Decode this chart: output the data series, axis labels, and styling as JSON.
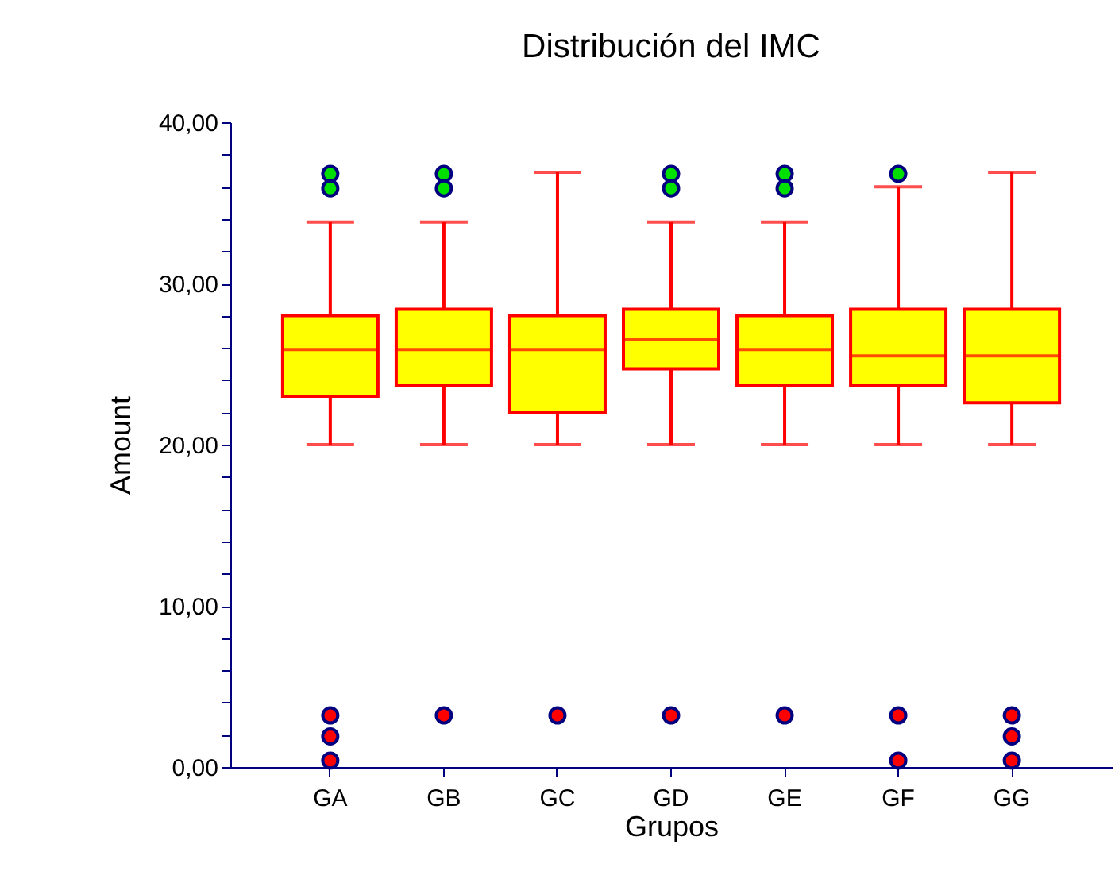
{
  "chart_data": {
    "type": "box",
    "title": "Distribución del IMC",
    "xlabel": "Grupos",
    "ylabel": "Amount",
    "categories": [
      "GA",
      "GB",
      "GC",
      "GD",
      "GE",
      "GF",
      "GG"
    ],
    "ylim": [
      0,
      40
    ],
    "yticks": [
      {
        "value": 0,
        "label": "0,00"
      },
      {
        "value": 2,
        "label": null
      },
      {
        "value": 4,
        "label": null
      },
      {
        "value": 6,
        "label": null
      },
      {
        "value": 8,
        "label": null
      },
      {
        "value": 10,
        "label": "10,00"
      },
      {
        "value": 12,
        "label": null
      },
      {
        "value": 14,
        "label": null
      },
      {
        "value": 16,
        "label": null
      },
      {
        "value": 18,
        "label": null
      },
      {
        "value": 20,
        "label": "20,00"
      },
      {
        "value": 22,
        "label": null
      },
      {
        "value": 24,
        "label": null
      },
      {
        "value": 26,
        "label": null
      },
      {
        "value": 28,
        "label": null
      },
      {
        "value": 30,
        "label": "30,00"
      },
      {
        "value": 32,
        "label": null
      },
      {
        "value": 34,
        "label": null
      },
      {
        "value": 36,
        "label": null
      },
      {
        "value": 38,
        "label": null
      },
      {
        "value": 40,
        "label": "40,00"
      }
    ],
    "series": [
      {
        "type": "box",
        "color": "#ffff00",
        "boxes": [
          {
            "low": 20,
            "q1": 23,
            "median": 25.9,
            "q3": 28,
            "high": 33.8
          },
          {
            "low": 20,
            "q1": 23.7,
            "median": 25.9,
            "q3": 28.4,
            "high": 33.8
          },
          {
            "low": 20,
            "q1": 22,
            "median": 25.9,
            "q3": 28,
            "high": 36.9
          },
          {
            "low": 20,
            "q1": 24.7,
            "median": 26.5,
            "q3": 28.4,
            "high": 33.8
          },
          {
            "low": 20,
            "q1": 23.7,
            "median": 25.9,
            "q3": 28,
            "high": 33.8
          },
          {
            "low": 20,
            "q1": 23.7,
            "median": 25.5,
            "q3": 28.4,
            "high": 36
          },
          {
            "low": 20,
            "q1": 22.6,
            "median": 25.5,
            "q3": 28.4,
            "high": 36.9
          }
        ]
      },
      {
        "type": "scatter",
        "color": "#00e000",
        "x": [
          "GA",
          "GA",
          "GB",
          "GB",
          "GD",
          "GD",
          "GE",
          "GE",
          "GF"
        ],
        "values": [
          36.8,
          35.9,
          36.8,
          35.9,
          36.8,
          35.9,
          36.8,
          35.9,
          36.8
        ]
      },
      {
        "type": "scatter",
        "color": "#ff0000",
        "x": [
          "GA",
          "GA",
          "GA",
          "GB",
          "GC",
          "GD",
          "GE",
          "GF",
          "GF",
          "GG",
          "GG",
          "GG"
        ],
        "values": [
          3.2,
          1.9,
          0.4,
          3.2,
          3.2,
          3.2,
          3.2,
          3.2,
          0.4,
          3.2,
          1.9,
          0.4
        ]
      }
    ]
  }
}
